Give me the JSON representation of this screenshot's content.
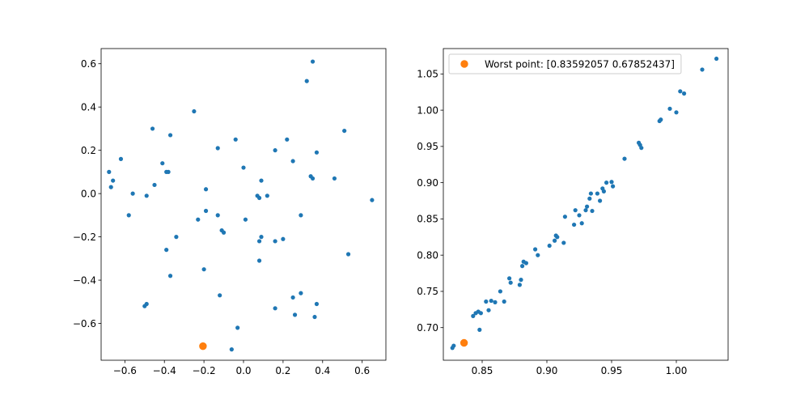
{
  "chart_data": [
    {
      "type": "scatter",
      "title": "",
      "xlabel": "",
      "ylabel": "",
      "xlim": [
        -0.72,
        0.72
      ],
      "ylim": [
        -0.77,
        0.67
      ],
      "xticks": [
        -0.6,
        -0.4,
        -0.2,
        0.0,
        0.2,
        0.4,
        0.6
      ],
      "xtick_labels": [
        "−0.6",
        "−0.4",
        "−0.2",
        "0.0",
        "0.2",
        "0.4",
        "0.6"
      ],
      "yticks": [
        -0.6,
        -0.4,
        -0.2,
        0.0,
        0.2,
        0.4,
        0.6
      ],
      "ytick_labels": [
        "−0.6",
        "−0.4",
        "−0.2",
        "0.0",
        "0.2",
        "0.4",
        "0.6"
      ],
      "grid": false,
      "series": [
        {
          "color": "#1f77b4",
          "marker_size": "small",
          "points": [
            [
              0.35,
              0.61
            ],
            [
              0.32,
              0.52
            ],
            [
              -0.25,
              0.38
            ],
            [
              0.51,
              0.29
            ],
            [
              -0.46,
              0.3
            ],
            [
              -0.37,
              0.27
            ],
            [
              0.22,
              0.25
            ],
            [
              -0.04,
              0.25
            ],
            [
              -0.13,
              0.21
            ],
            [
              0.16,
              0.2
            ],
            [
              0.37,
              0.19
            ],
            [
              -0.62,
              0.16
            ],
            [
              0.25,
              0.15
            ],
            [
              -0.41,
              0.14
            ],
            [
              0.0,
              0.12
            ],
            [
              -0.68,
              0.1
            ],
            [
              -0.39,
              0.1
            ],
            [
              -0.38,
              0.1
            ],
            [
              0.34,
              0.08
            ],
            [
              0.35,
              0.07
            ],
            [
              0.46,
              0.07
            ],
            [
              0.09,
              0.06
            ],
            [
              -0.66,
              0.06
            ],
            [
              -0.45,
              0.04
            ],
            [
              -0.67,
              0.03
            ],
            [
              -0.19,
              0.02
            ],
            [
              -0.56,
              0.0
            ],
            [
              0.07,
              -0.01
            ],
            [
              -0.49,
              -0.01
            ],
            [
              0.12,
              -0.01
            ],
            [
              0.08,
              -0.02
            ],
            [
              0.65,
              -0.03
            ],
            [
              -0.19,
              -0.08
            ],
            [
              -0.58,
              -0.1
            ],
            [
              0.29,
              -0.1
            ],
            [
              -0.13,
              -0.1
            ],
            [
              -0.23,
              -0.12
            ],
            [
              0.01,
              -0.12
            ],
            [
              -0.11,
              -0.17
            ],
            [
              -0.1,
              -0.18
            ],
            [
              -0.34,
              -0.2
            ],
            [
              0.09,
              -0.2
            ],
            [
              0.08,
              -0.22
            ],
            [
              0.2,
              -0.21
            ],
            [
              0.16,
              -0.22
            ],
            [
              -0.39,
              -0.26
            ],
            [
              0.53,
              -0.28
            ],
            [
              0.08,
              -0.31
            ],
            [
              -0.2,
              -0.35
            ],
            [
              -0.37,
              -0.38
            ],
            [
              -0.12,
              -0.47
            ],
            [
              0.29,
              -0.46
            ],
            [
              0.25,
              -0.48
            ],
            [
              0.37,
              -0.51
            ],
            [
              -0.49,
              -0.51
            ],
            [
              -0.5,
              -0.52
            ],
            [
              0.16,
              -0.53
            ],
            [
              0.26,
              -0.56
            ],
            [
              0.36,
              -0.57
            ],
            [
              -0.03,
              -0.62
            ],
            [
              -0.06,
              -0.72
            ]
          ]
        },
        {
          "color": "#ff7f0e",
          "marker_size": "large",
          "points": [
            [
              -0.205,
              -0.705
            ]
          ]
        }
      ]
    },
    {
      "type": "scatter",
      "title": "",
      "xlabel": "",
      "ylabel": "",
      "xlim": [
        0.82,
        1.04
      ],
      "ylim": [
        0.655,
        1.085
      ],
      "xticks": [
        0.85,
        0.9,
        0.95,
        1.0
      ],
      "xtick_labels": [
        "0.85",
        "0.90",
        "0.95",
        "1.00"
      ],
      "yticks": [
        0.7,
        0.75,
        0.8,
        0.85,
        0.9,
        0.95,
        1.0,
        1.05
      ],
      "ytick_labels": [
        "0.70",
        "0.75",
        "0.80",
        "0.85",
        "0.90",
        "0.95",
        "1.00",
        "1.05"
      ],
      "grid": false,
      "legend": {
        "placement": "upper-left",
        "entries": [
          {
            "label": "Worst point: [0.83592057 0.67852437]",
            "color": "#ff7f0e"
          }
        ]
      },
      "series": [
        {
          "color": "#1f77b4",
          "marker_size": "small",
          "points": [
            [
              0.827,
              0.672
            ],
            [
              0.828,
              0.675
            ],
            [
              0.843,
              0.716
            ],
            [
              0.845,
              0.72
            ],
            [
              0.847,
              0.722
            ],
            [
              0.849,
              0.72
            ],
            [
              0.848,
              0.697
            ],
            [
              0.853,
              0.736
            ],
            [
              0.855,
              0.724
            ],
            [
              0.857,
              0.737
            ],
            [
              0.86,
              0.735
            ],
            [
              0.864,
              0.75
            ],
            [
              0.867,
              0.736
            ],
            [
              0.871,
              0.768
            ],
            [
              0.872,
              0.762
            ],
            [
              0.879,
              0.759
            ],
            [
              0.88,
              0.766
            ],
            [
              0.881,
              0.785
            ],
            [
              0.882,
              0.791
            ],
            [
              0.884,
              0.789
            ],
            [
              0.891,
              0.808
            ],
            [
              0.893,
              0.8
            ],
            [
              0.902,
              0.813
            ],
            [
              0.906,
              0.82
            ],
            [
              0.907,
              0.827
            ],
            [
              0.908,
              0.825
            ],
            [
              0.913,
              0.817
            ],
            [
              0.914,
              0.853
            ],
            [
              0.921,
              0.842
            ],
            [
              0.922,
              0.862
            ],
            [
              0.925,
              0.855
            ],
            [
              0.927,
              0.844
            ],
            [
              0.93,
              0.862
            ],
            [
              0.931,
              0.867
            ],
            [
              0.933,
              0.878
            ],
            [
              0.934,
              0.885
            ],
            [
              0.935,
              0.861
            ],
            [
              0.939,
              0.885
            ],
            [
              0.941,
              0.875
            ],
            [
              0.943,
              0.892
            ],
            [
              0.944,
              0.888
            ],
            [
              0.946,
              0.9
            ],
            [
              0.95,
              0.901
            ],
            [
              0.951,
              0.895
            ],
            [
              0.96,
              0.933
            ],
            [
              0.971,
              0.955
            ],
            [
              0.972,
              0.952
            ],
            [
              0.973,
              0.948
            ],
            [
              0.987,
              0.985
            ],
            [
              0.988,
              0.987
            ],
            [
              0.995,
              1.002
            ],
            [
              1.0,
              0.997
            ],
            [
              1.003,
              1.026
            ],
            [
              1.006,
              1.023
            ],
            [
              1.02,
              1.056
            ],
            [
              1.031,
              1.071
            ]
          ]
        },
        {
          "color": "#ff7f0e",
          "marker_size": "large",
          "points": [
            [
              0.836,
              0.679
            ]
          ]
        }
      ]
    }
  ]
}
